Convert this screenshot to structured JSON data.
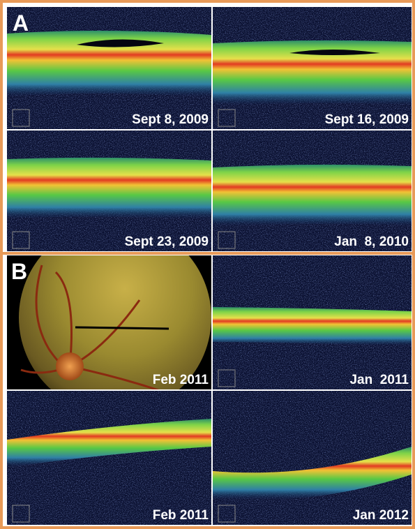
{
  "panels": [
    {
      "label": "A",
      "images": [
        {
          "date": "Sept 8, 2009"
        },
        {
          "date": "Sept 16, 2009"
        },
        {
          "date": "Sept 23, 2009"
        },
        {
          "date": "Jan  8, 2010"
        }
      ]
    },
    {
      "label": "B",
      "images": [
        {
          "date": "Feb 2011"
        },
        {
          "date": "Jan  2011"
        },
        {
          "date": "Feb 2011"
        },
        {
          "date": "Jan 2012"
        }
      ]
    }
  ]
}
